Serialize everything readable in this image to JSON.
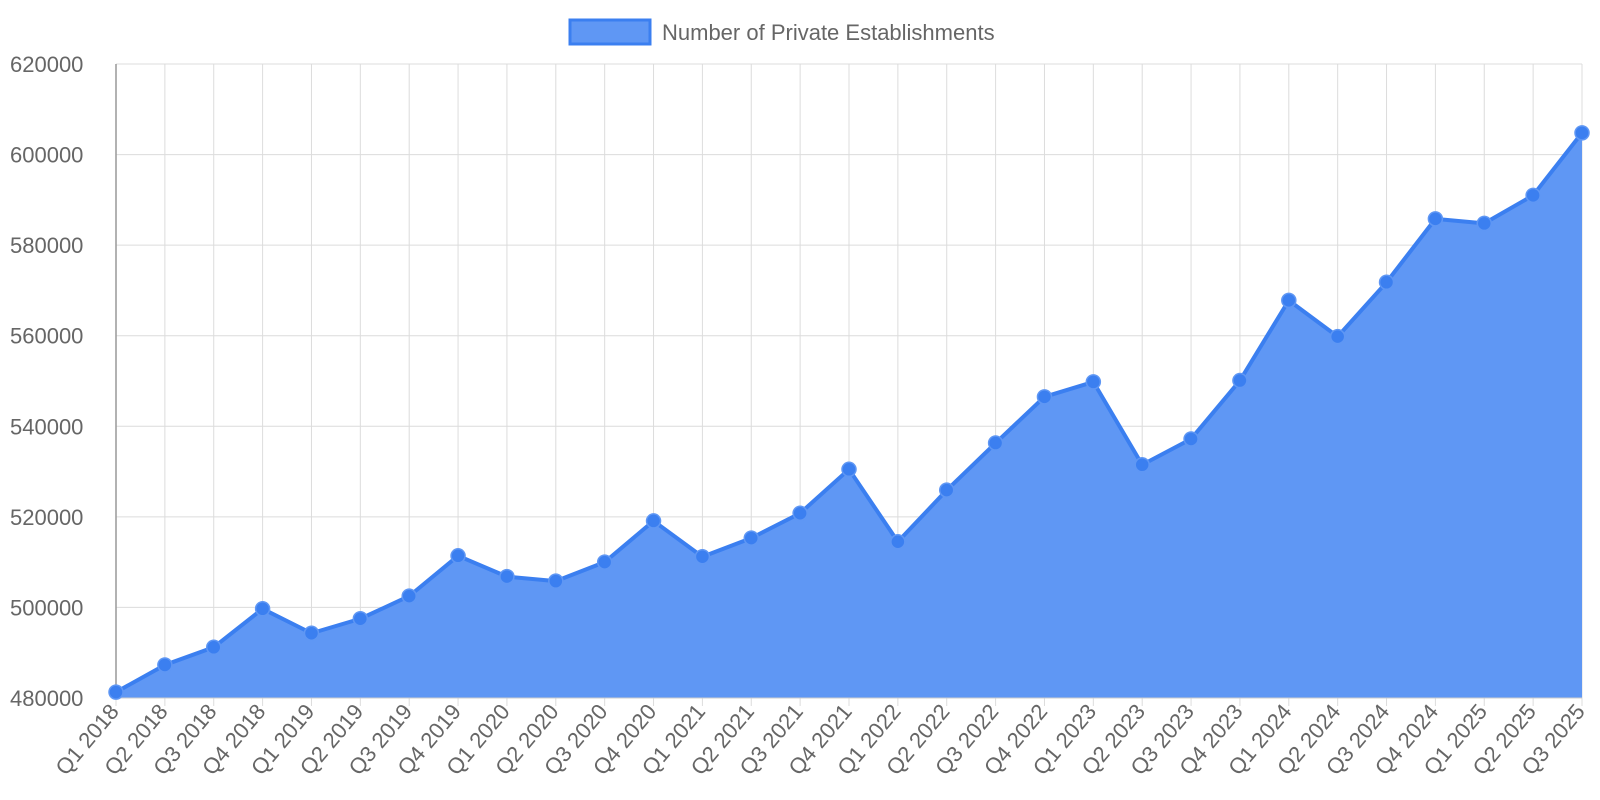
{
  "chart_data": {
    "type": "area",
    "legend": {
      "position": "top",
      "entries": [
        "Number of Private Establishments"
      ]
    },
    "grid": true,
    "ylim": [
      480000,
      620000
    ],
    "yticks": [
      480000,
      500000,
      520000,
      540000,
      560000,
      580000,
      600000,
      620000
    ],
    "categories": [
      "Q1 2018",
      "Q2 2018",
      "Q3 2018",
      "Q4 2018",
      "Q1 2019",
      "Q2 2019",
      "Q3 2019",
      "Q4 2019",
      "Q1 2020",
      "Q2 2020",
      "Q3 2020",
      "Q4 2020",
      "Q1 2021",
      "Q2 2021",
      "Q3 2021",
      "Q4 2021",
      "Q1 2022",
      "Q2 2022",
      "Q3 2022",
      "Q4 2022",
      "Q1 2023",
      "Q2 2023",
      "Q3 2023",
      "Q4 2023",
      "Q1 2024",
      "Q2 2024",
      "Q3 2024",
      "Q4 2024",
      "Q1 2025",
      "Q2 2025",
      "Q3 2025"
    ],
    "series": [
      {
        "name": "Number of Private Establishments",
        "color": "#3b7ff0",
        "fill": "#5f97f4",
        "values": [
          481300,
          487300,
          491200,
          499700,
          494300,
          497500,
          502500,
          511400,
          506800,
          505800,
          510000,
          519100,
          511200,
          515300,
          520800,
          530500,
          514500,
          525900,
          536300,
          546500,
          549800,
          531500,
          537200,
          550100,
          567800,
          559800,
          571800,
          585800,
          584800,
          591000,
          604800
        ]
      }
    ]
  }
}
